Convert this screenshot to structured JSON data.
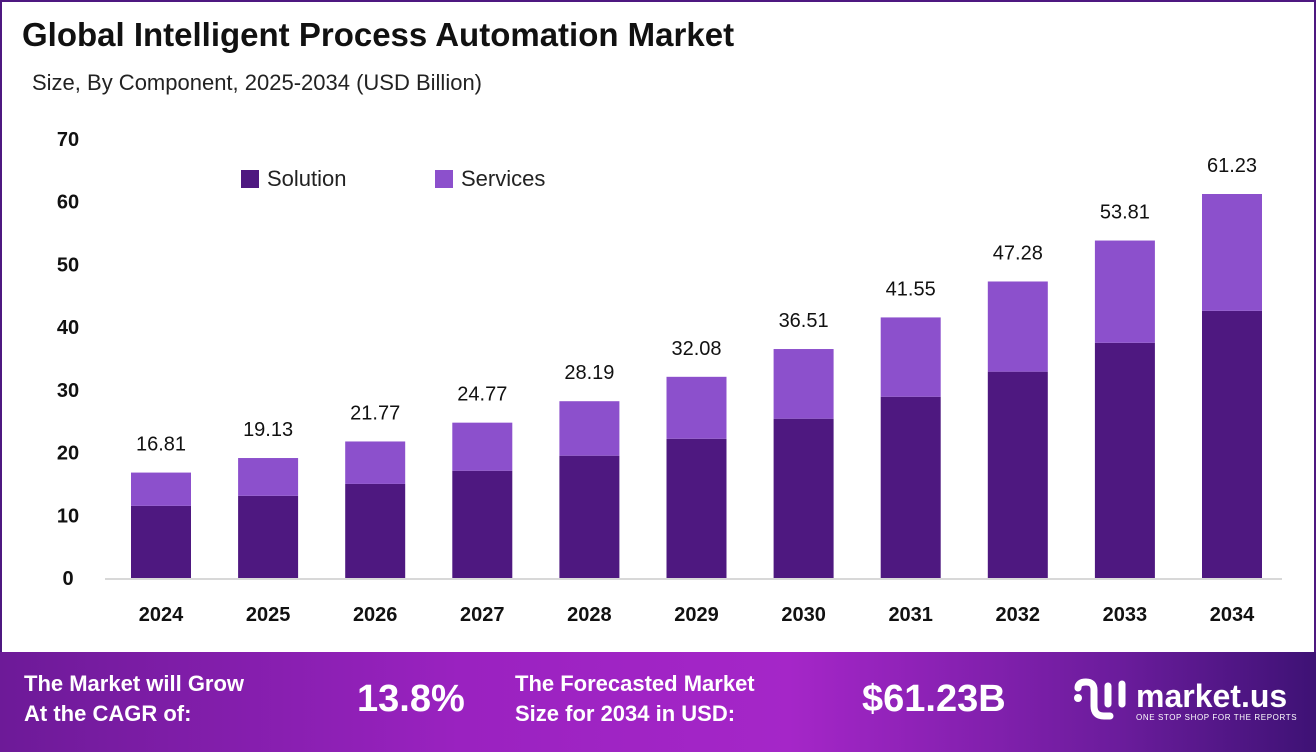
{
  "header": {
    "title": "Global Intelligent Process Automation Market",
    "subtitle": "Size, By Component, 2025-2034 (USD Billion)"
  },
  "chart_data": {
    "type": "bar",
    "stacked": true,
    "categories": [
      "2024",
      "2025",
      "2026",
      "2027",
      "2028",
      "2029",
      "2030",
      "2031",
      "2032",
      "2033",
      "2034"
    ],
    "series": [
      {
        "name": "Solution",
        "color": "#4E1880",
        "values": [
          11.5,
          13.1,
          15.0,
          17.1,
          19.5,
          22.2,
          25.4,
          28.9,
          32.9,
          37.5,
          42.6
        ]
      },
      {
        "name": "Services",
        "color": "#8C50CC",
        "values": [
          5.31,
          6.03,
          6.77,
          7.67,
          8.69,
          9.88,
          11.11,
          12.65,
          14.38,
          16.31,
          18.63
        ]
      }
    ],
    "totals": [
      "16.81",
      "19.13",
      "21.77",
      "24.77",
      "28.19",
      "32.08",
      "36.51",
      "41.55",
      "47.28",
      "53.81",
      "61.23"
    ],
    "yticks": [
      "0",
      "10",
      "20",
      "30",
      "40",
      "50",
      "60",
      "70"
    ],
    "ylim": [
      0,
      70
    ],
    "grid": false,
    "legend": "top-left"
  },
  "banner": {
    "cagr_label_1": "The Market will Grow",
    "cagr_label_2": "At the CAGR of:",
    "cagr_value": "13.8%",
    "forecast_label_1": "The Forecasted Market",
    "forecast_label_2": "Size for 2034 in USD:",
    "forecast_value": "$61.23B",
    "logo_name": "market.us",
    "logo_tagline": "ONE STOP SHOP FOR THE REPORTS"
  }
}
